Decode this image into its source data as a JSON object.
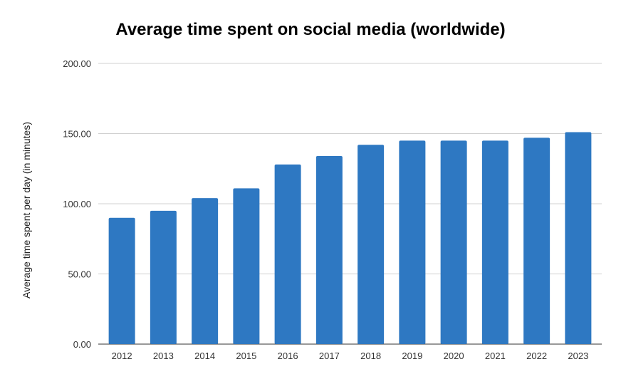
{
  "chart_data": {
    "type": "bar",
    "title": "Average time spent on social media (worldwide)",
    "xlabel": "",
    "ylabel": "Average time spent per day (in minutes)",
    "categories": [
      "2012",
      "2013",
      "2014",
      "2015",
      "2016",
      "2017",
      "2018",
      "2019",
      "2020",
      "2021",
      "2022",
      "2023"
    ],
    "values": [
      90,
      95,
      104,
      111,
      128,
      134,
      142,
      145,
      145,
      145,
      147,
      151
    ],
    "ylim": [
      0,
      200
    ],
    "yticks": [
      "0.00",
      "50.00",
      "100.00",
      "150.00",
      "200.00"
    ],
    "grid": true,
    "legend": "none",
    "bar_color": "#2e78c2"
  }
}
